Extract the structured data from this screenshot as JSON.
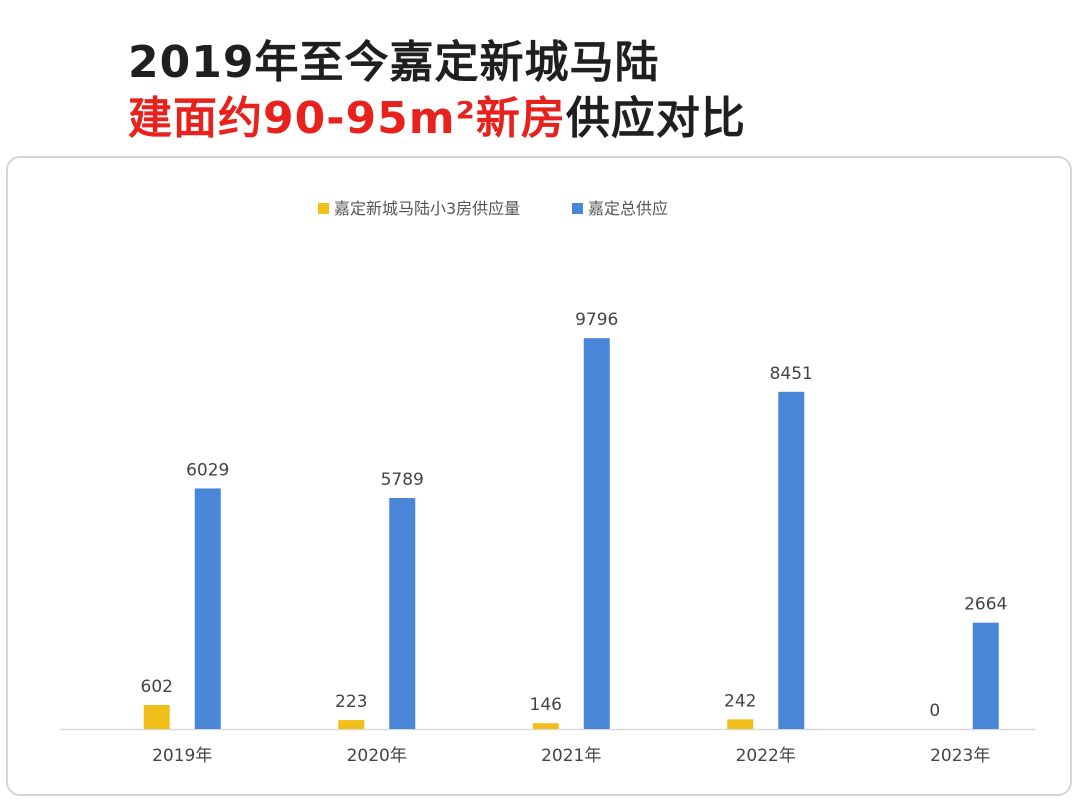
{
  "title": {
    "line1": "2019年至今嘉定新城马陆",
    "line2_red": "建面约90-95m²新房",
    "line2_black": "供应对比"
  },
  "chart_data": {
    "type": "bar",
    "categories": [
      "2019年",
      "2020年",
      "2021年",
      "2022年",
      "2023年"
    ],
    "series": [
      {
        "name": "嘉定新城马陆小3房供应量",
        "color": "#f0bf1a",
        "values": [
          602,
          223,
          146,
          242,
          0
        ]
      },
      {
        "name": "嘉定总供应",
        "color": "#4a86d8",
        "values": [
          6029,
          5789,
          9796,
          8451,
          2664
        ]
      }
    ],
    "ylim": [
      0,
      10000
    ],
    "legend_position": "top-center",
    "grid": false
  }
}
